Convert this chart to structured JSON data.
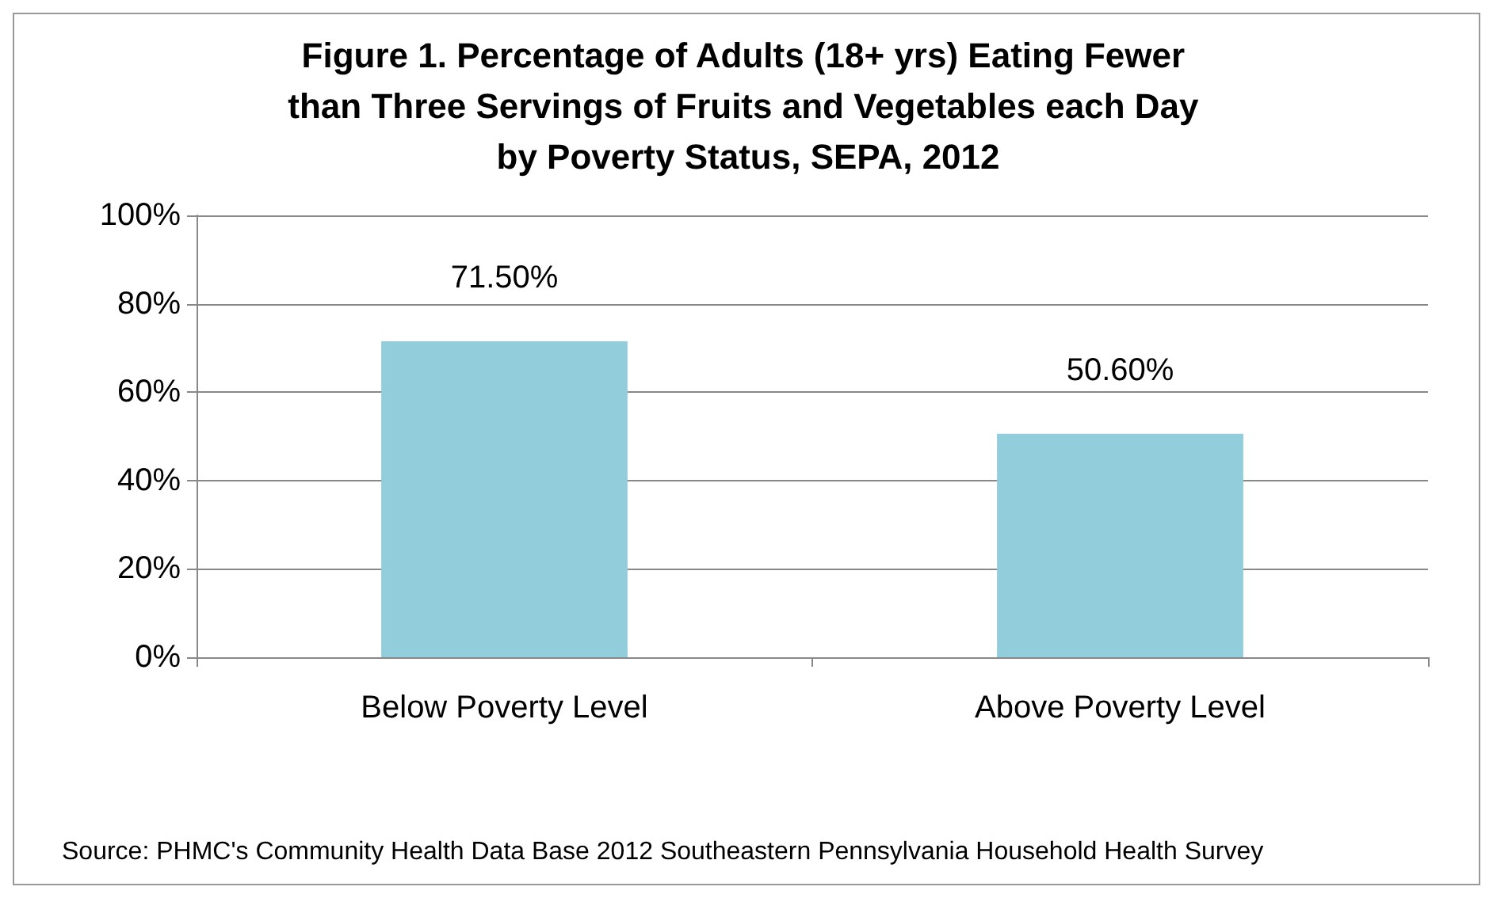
{
  "chart_data": {
    "type": "bar",
    "title": "Figure 1. Percentage of Adults (18+ yrs) Eating Fewer than Three Servings of Fruits and Vegetables each Day by Poverty Status, SEPA, 2012",
    "categories": [
      "Below Poverty Level",
      "Above Poverty Level"
    ],
    "values": [
      71.5,
      50.6
    ],
    "value_labels": [
      "71.50%",
      "50.60%"
    ],
    "color": "#92cddc",
    "ylim": [
      0,
      100
    ],
    "yticks": [
      {
        "value": 0,
        "label": "0%"
      },
      {
        "value": 20,
        "label": "20%"
      },
      {
        "value": 40,
        "label": "40%"
      },
      {
        "value": 60,
        "label": "60%"
      },
      {
        "value": 80,
        "label": "80%"
      },
      {
        "value": 100,
        "label": "100%"
      }
    ],
    "grid": "y",
    "annotations": [
      "Source: PHMC's Community Health Data Base 2012 Southeastern Pennsylvania Household Health Survey"
    ]
  }
}
